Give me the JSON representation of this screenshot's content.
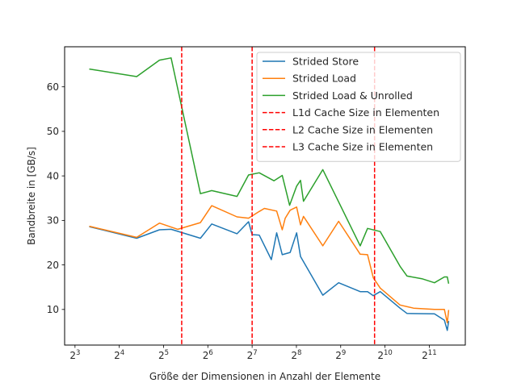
{
  "chart_data": {
    "type": "line",
    "title": "",
    "xlabel": "Größe der Dimensionen in Anzahl der Elemente",
    "ylabel": "Bandbreite in [GB/s]",
    "x_scale": "log2",
    "xlim": [
      6.8,
      3600
    ],
    "ylim": [
      2,
      69
    ],
    "x_ticks": [
      {
        "value": 8,
        "base": "2",
        "exp": "3"
      },
      {
        "value": 16,
        "base": "2",
        "exp": "4"
      },
      {
        "value": 32,
        "base": "2",
        "exp": "5"
      },
      {
        "value": 64,
        "base": "2",
        "exp": "6"
      },
      {
        "value": 128,
        "base": "2",
        "exp": "7"
      },
      {
        "value": 256,
        "base": "2",
        "exp": "8"
      },
      {
        "value": 512,
        "base": "2",
        "exp": "9"
      },
      {
        "value": 1024,
        "base": "2",
        "exp": "10"
      },
      {
        "value": 2048,
        "base": "2",
        "exp": "11"
      }
    ],
    "y_ticks": [
      10,
      20,
      30,
      40,
      50,
      60
    ],
    "grid": false,
    "legend_position": "top-right",
    "series": [
      {
        "name": "Strided Store",
        "color": "#1f77b4",
        "style": "solid",
        "points": [
          [
            10,
            28.6
          ],
          [
            21,
            26.0
          ],
          [
            30,
            27.9
          ],
          [
            36,
            28.0
          ],
          [
            57,
            26.0
          ],
          [
            68,
            29.2
          ],
          [
            101,
            27.0
          ],
          [
            121,
            29.7
          ],
          [
            128,
            26.8
          ],
          [
            143,
            26.7
          ],
          [
            173,
            21.2
          ],
          [
            188,
            27.2
          ],
          [
            205,
            22.3
          ],
          [
            232,
            22.8
          ],
          [
            257,
            27.2
          ],
          [
            273,
            21.9
          ],
          [
            387,
            13.2
          ],
          [
            496,
            16.0
          ],
          [
            695,
            14.0
          ],
          [
            780,
            14.0
          ],
          [
            853,
            13.1
          ],
          [
            951,
            14.0
          ],
          [
            1296,
            10.3
          ],
          [
            1447,
            9.1
          ],
          [
            2221,
            9.0
          ],
          [
            2593,
            7.6
          ],
          [
            2714,
            5.3
          ],
          [
            2773,
            7.4
          ]
        ]
      },
      {
        "name": "Strided Load",
        "color": "#ff7f0e",
        "style": "solid",
        "points": [
          [
            10,
            28.7
          ],
          [
            21,
            26.2
          ],
          [
            30,
            29.4
          ],
          [
            40,
            28.0
          ],
          [
            57,
            29.5
          ],
          [
            68,
            33.3
          ],
          [
            101,
            30.8
          ],
          [
            121,
            30.5
          ],
          [
            143,
            32.0
          ],
          [
            155,
            32.7
          ],
          [
            188,
            32.1
          ],
          [
            205,
            27.9
          ],
          [
            215,
            30.5
          ],
          [
            232,
            32.3
          ],
          [
            257,
            33.0
          ],
          [
            273,
            29.0
          ],
          [
            286,
            30.9
          ],
          [
            387,
            24.3
          ],
          [
            496,
            29.8
          ],
          [
            695,
            22.4
          ],
          [
            780,
            22.3
          ],
          [
            853,
            17.1
          ],
          [
            951,
            14.8
          ],
          [
            1296,
            11.0
          ],
          [
            1600,
            10.3
          ],
          [
            2221,
            10.0
          ],
          [
            2593,
            10.0
          ],
          [
            2714,
            7.0
          ],
          [
            2773,
            9.9
          ]
        ]
      },
      {
        "name": "Strided Load & Unrolled",
        "color": "#2ca02c",
        "style": "solid",
        "points": [
          [
            10,
            64.0
          ],
          [
            21,
            62.3
          ],
          [
            30,
            66.0
          ],
          [
            36,
            66.5
          ],
          [
            57,
            36.0
          ],
          [
            68,
            36.7
          ],
          [
            101,
            35.4
          ],
          [
            121,
            40.2
          ],
          [
            143,
            40.7
          ],
          [
            180,
            38.9
          ],
          [
            205,
            40.1
          ],
          [
            230,
            33.4
          ],
          [
            257,
            37.7
          ],
          [
            273,
            39.0
          ],
          [
            286,
            34.3
          ],
          [
            387,
            41.4
          ],
          [
            695,
            24.3
          ],
          [
            780,
            28.2
          ],
          [
            951,
            27.5
          ],
          [
            1296,
            19.7
          ],
          [
            1447,
            17.5
          ],
          [
            1826,
            16.9
          ],
          [
            2221,
            16.0
          ],
          [
            2593,
            17.3
          ],
          [
            2714,
            17.3
          ],
          [
            2773,
            15.8
          ]
        ]
      }
    ],
    "vlines": [
      {
        "name": "L1d Cache Size in Elementen",
        "x": 42.5,
        "color": "#ff0000",
        "style": "dashed"
      },
      {
        "name": "L2 Cache Size in Elementen",
        "x": 128,
        "color": "#ff0000",
        "style": "dashed"
      },
      {
        "name": "L3 Cache Size in Elementen",
        "x": 870,
        "color": "#ff0000",
        "style": "dashed"
      }
    ]
  }
}
